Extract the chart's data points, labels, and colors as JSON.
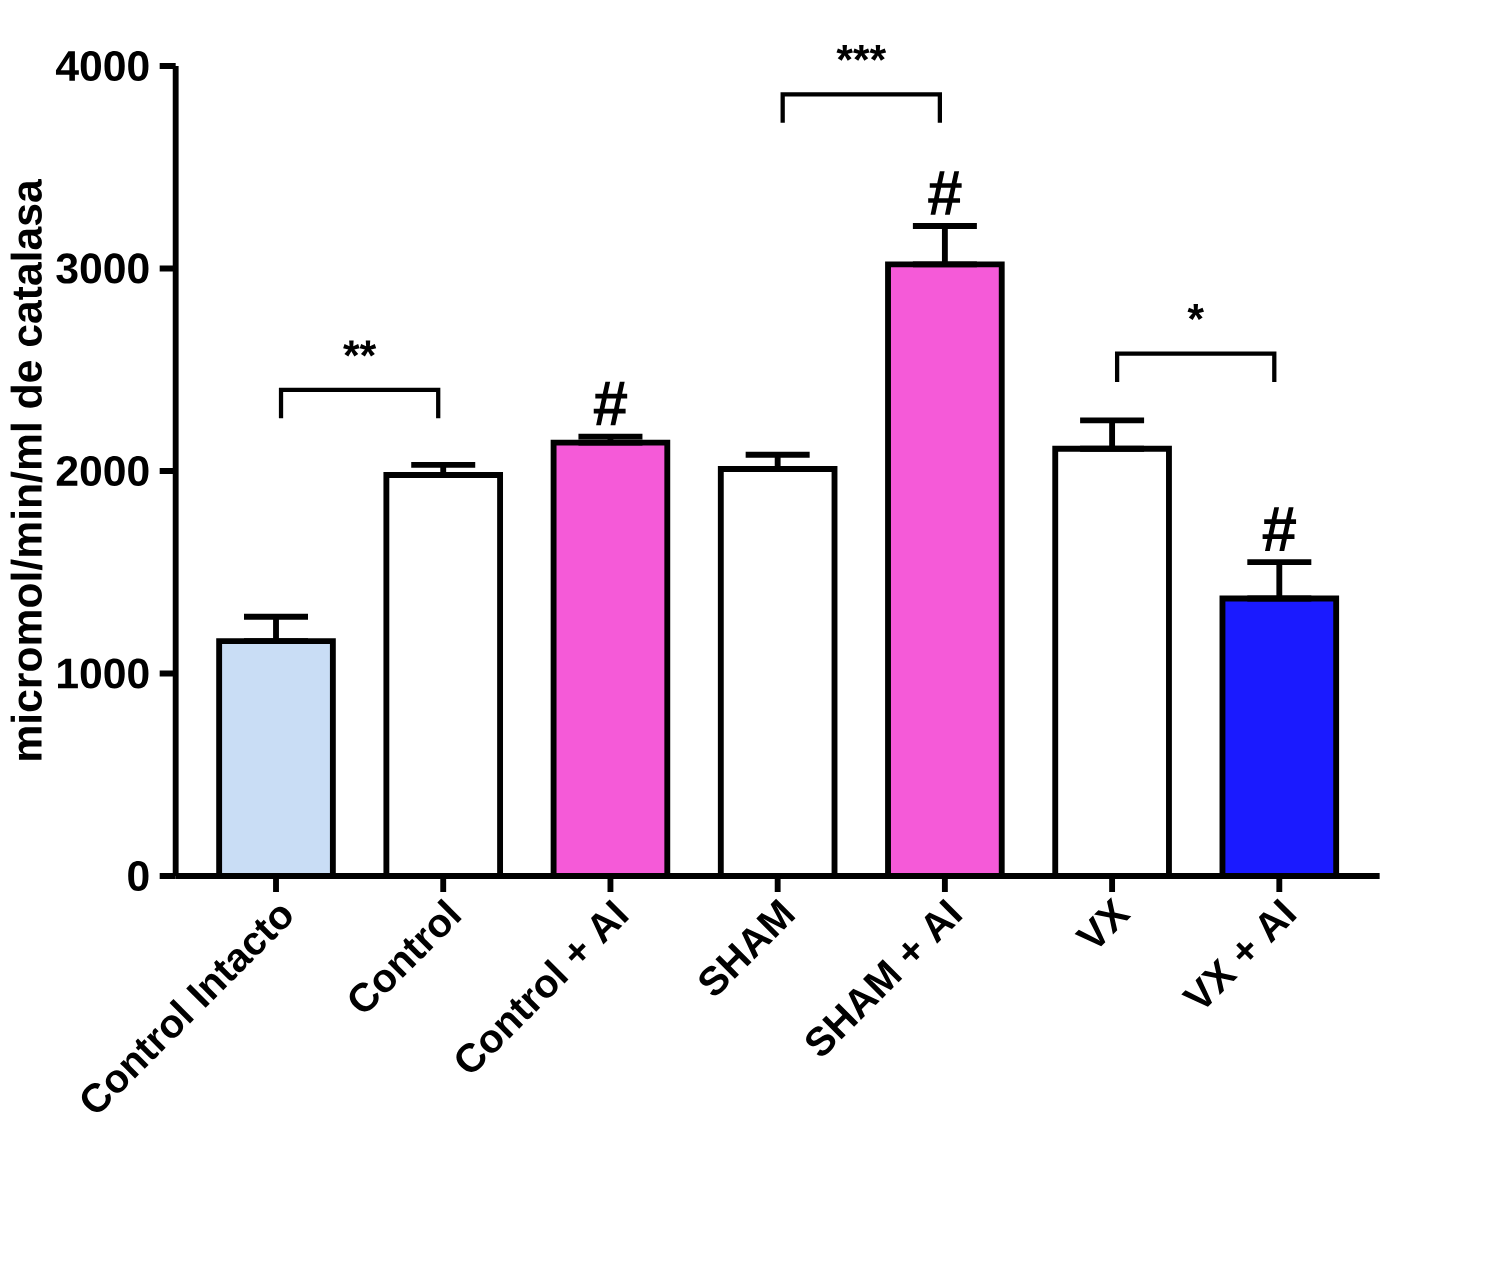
{
  "chart_data": {
    "type": "bar",
    "ylabel": "micromol/min/ml de catalasa",
    "categories": [
      "Control Intacto",
      "Control",
      "Control + AI",
      "SHAM",
      "SHAM + AI",
      "VX",
      "VX + AI"
    ],
    "values": [
      1160,
      1980,
      2140,
      2010,
      3020,
      2110,
      1370
    ],
    "errors": [
      [
        1160,
        1280
      ],
      [
        1980,
        2030
      ],
      [
        2140,
        2170
      ],
      [
        2010,
        2080
      ],
      [
        3020,
        3210
      ],
      [
        2110,
        2250
      ],
      [
        1370,
        1550
      ]
    ],
    "colors": [
      "#c9ddf5",
      "#ffffff",
      "#f55ad8",
      "#ffffff",
      "#f55ad8",
      "#ffffff",
      "#1a1aff"
    ],
    "ylim": [
      0,
      4000
    ],
    "yticks": [
      0,
      1000,
      2000,
      3000,
      4000
    ],
    "annotations": [
      "**",
      {
        "text": "#",
        "x": "Control + AI",
        "y": 2170
      },
      "***",
      {
        "text": "#",
        "x": "SHAM + AI",
        "y": 3210
      },
      "*",
      {
        "text": "#",
        "x": "VX + AI",
        "y": 1550
      }
    ]
  }
}
